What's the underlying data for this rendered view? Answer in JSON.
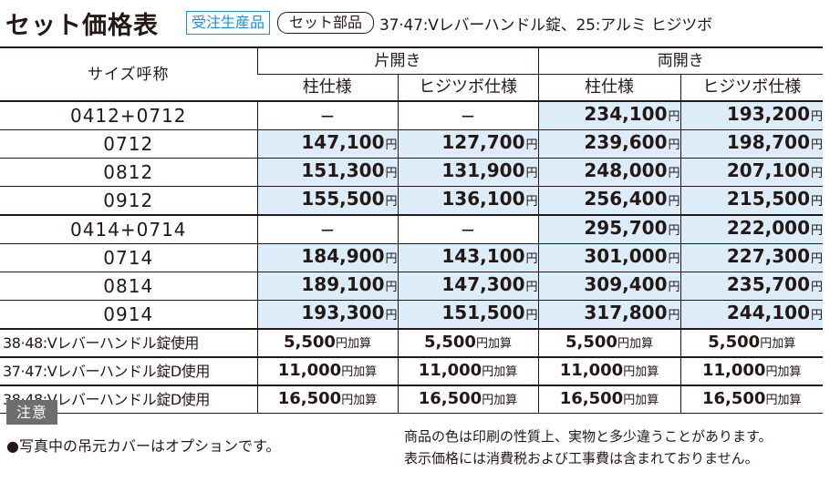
{
  "header": {
    "title": "セット価格表",
    "badge_made_to_order": "受注生産品",
    "badge_set_parts": "セット部品",
    "subtitle": "37·47:Vレバーハンドル錠、25:アルミ ヒジツボ"
  },
  "table": {
    "size_header": "サイズ呼称",
    "group_single": "片開き",
    "group_double": "両開き",
    "col_pillar": "柱仕様",
    "col_hijitsubo": "ヒジツボ仕様",
    "yen": "円",
    "add_suffix": "円加算",
    "dash": "−",
    "rows": [
      {
        "size": "0412+0712",
        "s_pillar": "",
        "s_hiji": "",
        "d_pillar": "234,100",
        "d_hiji": "193,200"
      },
      {
        "size": "0712",
        "s_pillar": "147,100",
        "s_hiji": "127,700",
        "d_pillar": "239,600",
        "d_hiji": "198,700"
      },
      {
        "size": "0812",
        "s_pillar": "151,300",
        "s_hiji": "131,900",
        "d_pillar": "248,000",
        "d_hiji": "207,100"
      },
      {
        "size": "0912",
        "s_pillar": "155,500",
        "s_hiji": "136,100",
        "d_pillar": "256,400",
        "d_hiji": "215,500"
      },
      {
        "size": "0414+0714",
        "s_pillar": "",
        "s_hiji": "",
        "d_pillar": "295,700",
        "d_hiji": "222,000"
      },
      {
        "size": "0714",
        "s_pillar": "184,900",
        "s_hiji": "143,100",
        "d_pillar": "301,000",
        "d_hiji": "227,300"
      },
      {
        "size": "0814",
        "s_pillar": "189,100",
        "s_hiji": "147,300",
        "d_pillar": "309,400",
        "d_hiji": "235,700"
      },
      {
        "size": "0914",
        "s_pillar": "193,300",
        "s_hiji": "151,500",
        "d_pillar": "317,800",
        "d_hiji": "244,100"
      }
    ],
    "options": [
      {
        "label": "38·48:Vレバーハンドル錠使用",
        "v1": "5,500",
        "v2": "5,500",
        "v3": "5,500",
        "v4": "5,500"
      },
      {
        "label": "37·47:Vレバーハンドル錠D使用",
        "v1": "11,000",
        "v2": "11,000",
        "v3": "11,000",
        "v4": "11,000"
      },
      {
        "label": "38·48:Vレバーハンドル錠D使用",
        "v1": "16,500",
        "v2": "16,500",
        "v3": "16,500",
        "v4": "16,500"
      }
    ]
  },
  "notes": {
    "label": "注意",
    "left": "●写真中の吊元カバーはオプションです。",
    "right_1": "商品の色は印刷の性質上、実物と多少違うことがあります。",
    "right_2": "表示価格には消費税および工事費は含まれておりません。"
  },
  "colors": {
    "highlight_fill": "#dcedf9",
    "badge_blue": "#1a8fd8",
    "note_label_bg": "#6e6e6e"
  }
}
